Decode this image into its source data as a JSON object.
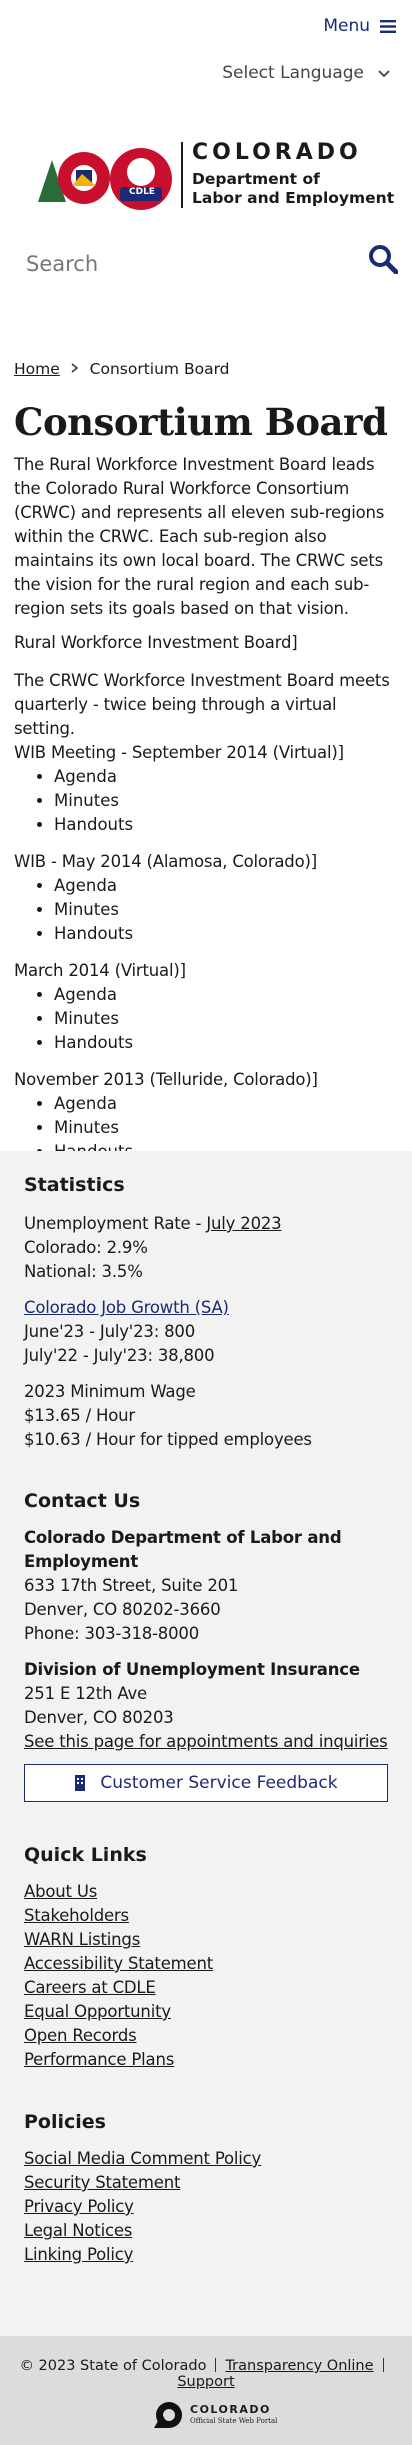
{
  "header": {
    "menu": "Menu",
    "language": "Select Language",
    "logo": {
      "state": "COLORADO",
      "dept_line1": "Department of",
      "dept_line2": "Labor and Employment",
      "badge": "CDLE"
    },
    "search_placeholder": "Search"
  },
  "breadcrumb": [
    "Home",
    "Consortium Board"
  ],
  "main": {
    "title": "Consortium Board",
    "intro": "The Rural Workforce Investment Board leads the Colorado Rural Workforce Consortium (CRWC) and represents all eleven sub-regions within the CRWC. Each sub-region also maintains its own local board. The CRWC sets the vision for the rural region and each sub-region sets its goals based on that vision.",
    "subheading": "Rural Workforce Investment Board]",
    "description": "The CRWC Workforce Investment Board meets quarterly - twice being through a virtual setting.",
    "meetings": [
      {
        "title": "WIB Meeting - September 2014 (Virtual)]",
        "items": [
          "Agenda",
          "Minutes",
          "Handouts"
        ]
      },
      {
        "title": "WIB - May 2014 (Alamosa, Colorado)]",
        "items": [
          "Agenda",
          "Minutes",
          "Handouts"
        ]
      },
      {
        "title": "March 2014 (Virtual)]",
        "items": [
          "Agenda",
          "Minutes",
          "Handouts"
        ]
      },
      {
        "title": "November 2013 (Telluride, Colorado)]",
        "items": [
          "Agenda",
          "Minutes",
          "Handouts"
        ]
      }
    ]
  },
  "footer": {
    "statistics": {
      "heading": "Statistics",
      "unemployment_label": "Unemployment Rate - ",
      "unemployment_link": "July 2023",
      "unemployment_lines": [
        "Colorado: 2.9%",
        "National: 3.5%"
      ],
      "job_growth_link": "Colorado Job Growth (SA)",
      "job_growth_lines": [
        "June'23 - July'23: 800",
        "July'22 - July'23: 38,800"
      ],
      "wage_lines": [
        "2023 Minimum Wage",
        "$13.65 / Hour",
        "$10.63 / Hour for tipped employees"
      ]
    },
    "contact": {
      "heading": "Contact Us",
      "org1": "Colorado Department of Labor and Employment",
      "org1_lines": [
        "633 17th Street, Suite 201",
        "Denver, CO  80202-3660",
        "Phone: 303-318-8000"
      ],
      "org2": "Division of Unemployment Insurance",
      "org2_lines": [
        "251 E 12th Ave",
        "Denver, CO  80203"
      ],
      "org2_link": "See this page for appointments and inquiries",
      "button": "Customer Service Feedback"
    },
    "quick_links": {
      "heading": "Quick Links",
      "links": [
        "About Us",
        "Stakeholders",
        "WARN Listings",
        "Accessibility Statement",
        "Careers at CDLE",
        "Equal Opportunity",
        "Open Records",
        "Performance Plans"
      ]
    },
    "policies": {
      "heading": "Policies",
      "links": [
        "Social Media Comment Policy",
        "Security Statement",
        "Privacy Policy",
        "Legal Notices",
        "Linking Policy"
      ]
    },
    "bottom": {
      "copyright": "© 2023 State of Colorado",
      "links": [
        "Transparency Online",
        "Support"
      ],
      "portal_name": "COLORADO",
      "portal_tagline": "Official State Web Portal"
    }
  }
}
